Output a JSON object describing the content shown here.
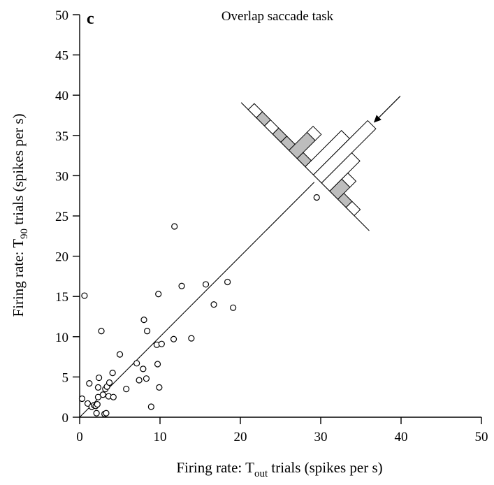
{
  "chart_data": {
    "type": "scatter",
    "panel_label": "c",
    "title": "Overlap saccade task",
    "xlabel": {
      "prefix": "Firing rate: T",
      "sub": "out",
      "suffix": " trials (spikes per s)"
    },
    "ylabel": {
      "prefix": "Firing rate: T",
      "sub": "90",
      "suffix": " trials (spikes per s)"
    },
    "xlim": [
      0,
      50
    ],
    "ylim": [
      0,
      50
    ],
    "xticks": [
      0,
      10,
      20,
      30,
      40,
      50
    ],
    "yticks": [
      0,
      5,
      10,
      15,
      20,
      25,
      30,
      35,
      40,
      45,
      50
    ],
    "identity_line": true,
    "grid": false,
    "points": [
      [
        0.6,
        15.1
      ],
      [
        0.3,
        2.3
      ],
      [
        1.0,
        1.7
      ],
      [
        1.2,
        4.2
      ],
      [
        1.5,
        1.3
      ],
      [
        1.8,
        1.5
      ],
      [
        2.0,
        1.4
      ],
      [
        2.1,
        0.5
      ],
      [
        2.2,
        1.6
      ],
      [
        2.3,
        2.5
      ],
      [
        2.3,
        3.7
      ],
      [
        2.4,
        4.9
      ],
      [
        2.7,
        10.7
      ],
      [
        2.9,
        2.8
      ],
      [
        3.1,
        0.4
      ],
      [
        3.3,
        0.5
      ],
      [
        3.2,
        3.5
      ],
      [
        3.4,
        3.8
      ],
      [
        3.6,
        2.6
      ],
      [
        3.7,
        4.3
      ],
      [
        4.1,
        5.5
      ],
      [
        4.2,
        2.5
      ],
      [
        5.0,
        7.8
      ],
      [
        5.8,
        3.5
      ],
      [
        7.1,
        6.7
      ],
      [
        7.4,
        4.6
      ],
      [
        7.9,
        6.0
      ],
      [
        8.0,
        12.1
      ],
      [
        8.3,
        4.8
      ],
      [
        8.4,
        10.7
      ],
      [
        8.9,
        1.3
      ],
      [
        9.6,
        9.0
      ],
      [
        9.7,
        6.6
      ],
      [
        9.8,
        15.3
      ],
      [
        9.9,
        3.7
      ],
      [
        10.2,
        9.1
      ],
      [
        11.7,
        9.7
      ],
      [
        11.8,
        23.7
      ],
      [
        12.7,
        16.3
      ],
      [
        13.9,
        9.8
      ],
      [
        15.7,
        16.5
      ],
      [
        16.7,
        14.0
      ],
      [
        18.4,
        16.8
      ],
      [
        19.1,
        13.6
      ],
      [
        29.5,
        27.3
      ]
    ],
    "projection_histogram": {
      "axis": "difference (y - x), projected along identity line",
      "marker": "arrow",
      "bins": [
        {
          "offset": -8,
          "white": 1,
          "gray": 0
        },
        {
          "offset": -7,
          "white": 0,
          "gray": 1
        },
        {
          "offset": -6,
          "white": 1,
          "gray": 0
        },
        {
          "offset": -5,
          "white": 0,
          "gray": 1
        },
        {
          "offset": -4,
          "white": 0,
          "gray": 1
        },
        {
          "offset": -3,
          "white": 1,
          "gray": 3
        },
        {
          "offset": -2,
          "white": 0,
          "gray": 1
        },
        {
          "offset": -1,
          "white": 6,
          "gray": 0
        },
        {
          "offset": 0,
          "white": 9,
          "gray": 0
        },
        {
          "offset": 1,
          "white": 5,
          "gray": 0
        },
        {
          "offset": 2,
          "white": 1,
          "gray": 2
        },
        {
          "offset": 3,
          "white": 0,
          "gray": 1
        },
        {
          "offset": 4,
          "white": 1,
          "gray": 0
        }
      ],
      "colors": {
        "white": "#ffffff",
        "gray": "#bdbdbd",
        "stroke": "#000000"
      }
    }
  }
}
